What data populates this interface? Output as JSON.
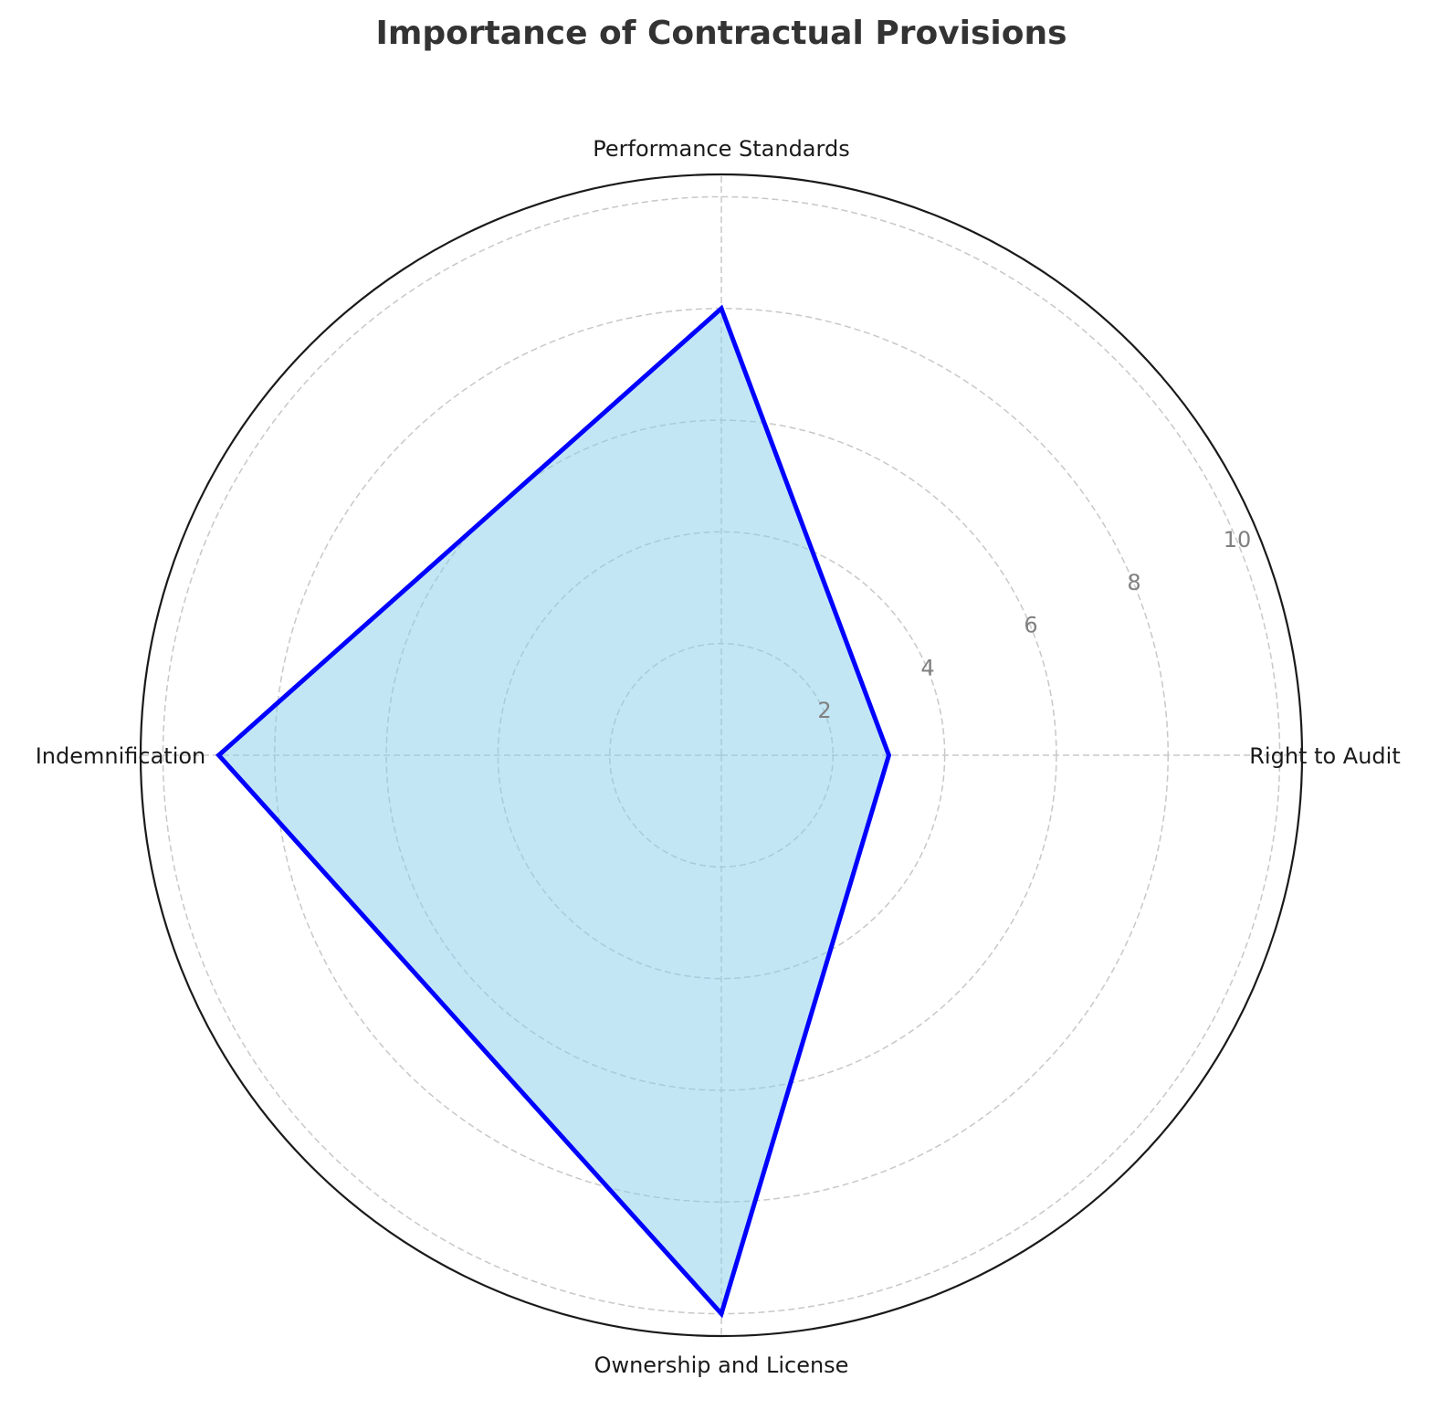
{
  "chart_data": {
    "type": "radar",
    "title": "Importance of Contractual Provisions",
    "categories": [
      "Right to Audit",
      "Performance Standards",
      "Indemnification",
      "Ownership and License"
    ],
    "series": [
      {
        "values": [
          3,
          8,
          9,
          10
        ]
      }
    ],
    "rlim": [
      0,
      10.4
    ],
    "rticks": [
      2,
      4,
      6,
      8,
      10
    ],
    "rtick_labels": [
      "2",
      "4",
      "6",
      "8",
      "10"
    ],
    "grid": true,
    "grid_style": "dashed",
    "line_color": "#0000ff",
    "fill_color": "#87ceeb",
    "fill_opacity": 0.5
  }
}
